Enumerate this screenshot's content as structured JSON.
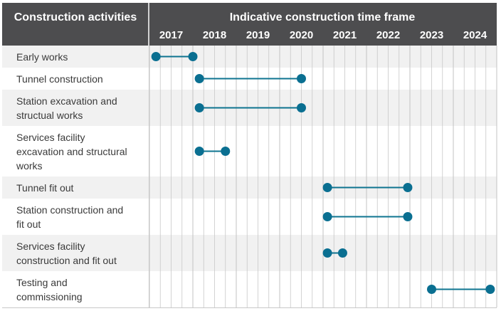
{
  "header": {
    "activities_title": "Construction activities",
    "timeframe_title": "Indicative construction time frame"
  },
  "colors": {
    "header_bg": "#4d4d4f",
    "row_shaded": "#f1f1f1",
    "row_plain": "#ffffff",
    "grid": "#c8c8c8",
    "bar": "#0e7490",
    "dot": "#0a6f91",
    "label_text": "#3a3a3a"
  },
  "chart_data": {
    "type": "gantt",
    "x_unit": "year",
    "xlim": [
      2016.75,
      2024.75
    ],
    "years": [
      "2017",
      "2018",
      "2019",
      "2020",
      "2021",
      "2022",
      "2023",
      "2024"
    ],
    "minor_ticks_per_year": 4,
    "tasks": [
      {
        "label": [
          "Early works"
        ],
        "start": 2016.9,
        "end": 2017.75
      },
      {
        "label": [
          "Tunnel construction"
        ],
        "start": 2017.9,
        "end": 2020.25
      },
      {
        "label": [
          "Station excavation and",
          "structual works"
        ],
        "start": 2017.9,
        "end": 2020.25
      },
      {
        "label": [
          "Services facility",
          "excavation and structural",
          "works"
        ],
        "start": 2017.9,
        "end": 2018.5
      },
      {
        "label": [
          "Tunnel fit out"
        ],
        "start": 2020.85,
        "end": 2022.7
      },
      {
        "label": [
          "Station construction and",
          "fit out"
        ],
        "start": 2020.85,
        "end": 2022.7
      },
      {
        "label": [
          "Services facility",
          "construction and fit out"
        ],
        "start": 2020.85,
        "end": 2021.2
      },
      {
        "label": [
          "Testing and",
          "commissioning"
        ],
        "start": 2023.25,
        "end": 2024.6
      }
    ]
  }
}
